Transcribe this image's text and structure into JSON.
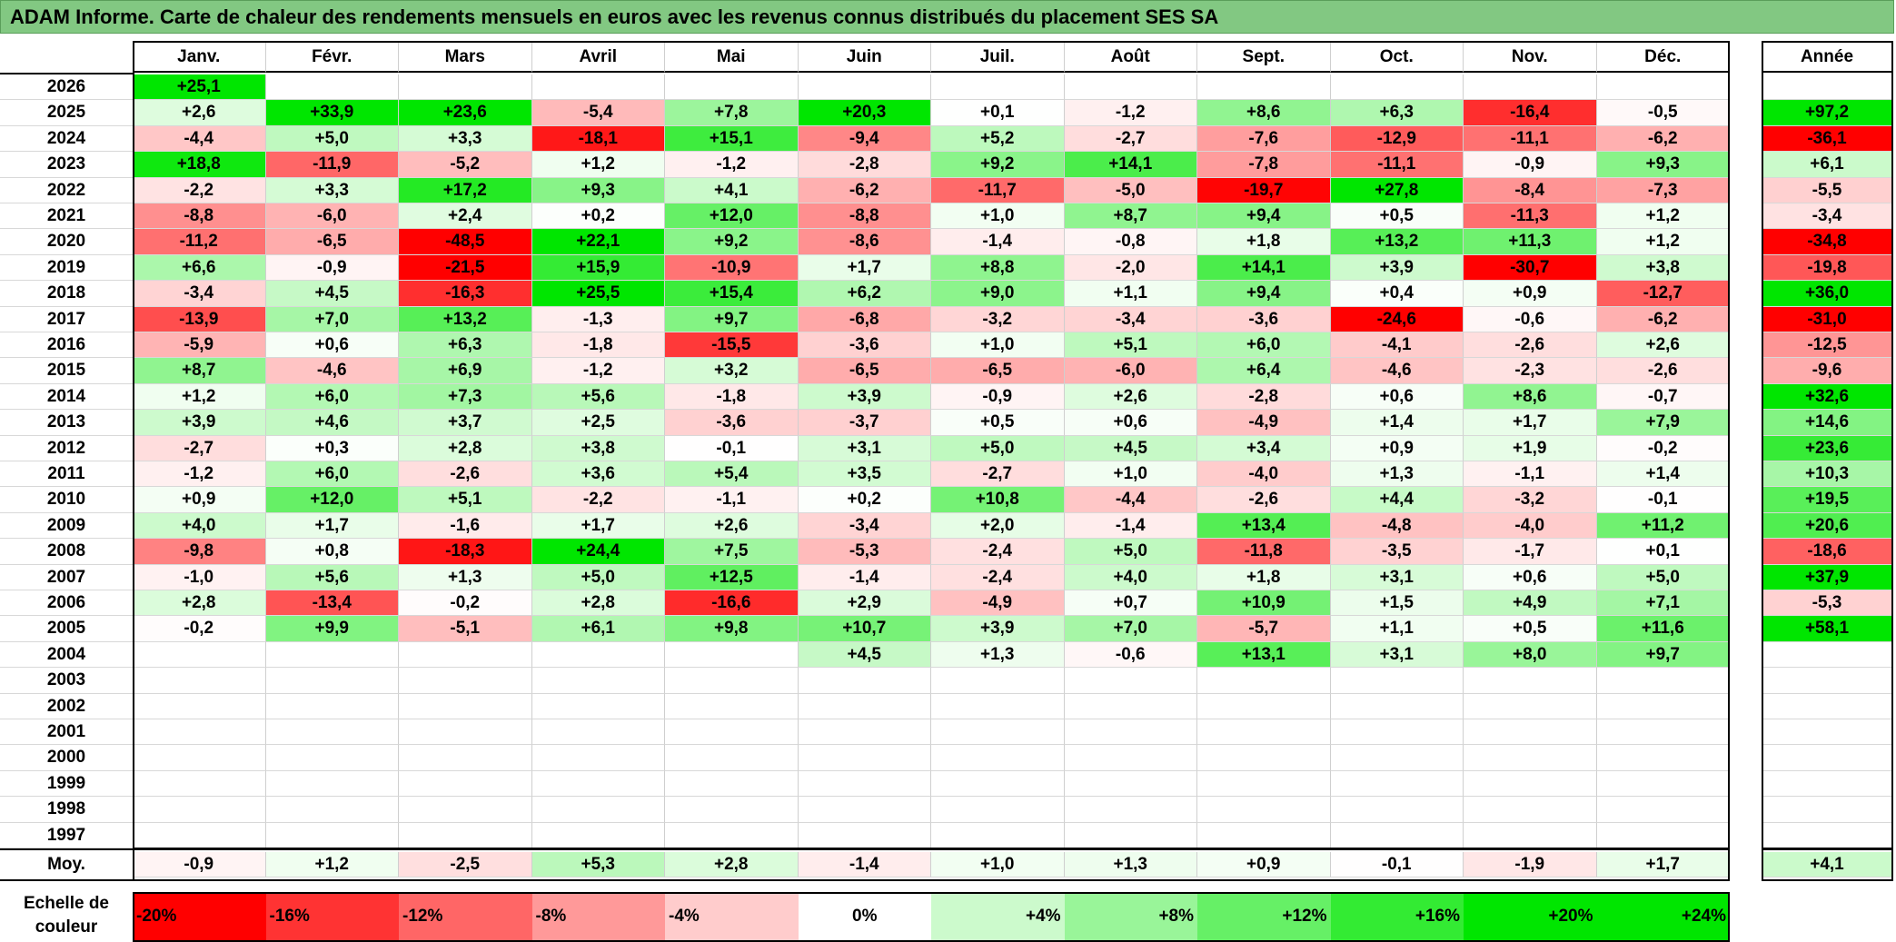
{
  "title": "ADAM Informe. Carte de chaleur des rendements mensuels en euros avec les revenus connus distribués du placement SES SA",
  "chart_data": {
    "type": "heatmap",
    "months": [
      "Janv.",
      "Févr.",
      "Mars",
      "Avril",
      "Mai",
      "Juin",
      "Juil.",
      "Août",
      "Sept.",
      "Oct.",
      "Nov.",
      "Déc."
    ],
    "annual_header": "Année",
    "years": [
      "2026",
      "2025",
      "2024",
      "2023",
      "2022",
      "2021",
      "2020",
      "2019",
      "2018",
      "2017",
      "2016",
      "2015",
      "2014",
      "2013",
      "2012",
      "2011",
      "2010",
      "2009",
      "2008",
      "2007",
      "2006",
      "2005",
      "2004",
      "2003",
      "2002",
      "2001",
      "2000",
      "1999",
      "1998",
      "1997"
    ],
    "values": [
      [
        "+25,1",
        "",
        "",
        "",
        "",
        "",
        "",
        "",
        "",
        "",
        "",
        ""
      ],
      [
        "+2,6",
        "+33,9",
        "+23,6",
        "-5,4",
        "+7,8",
        "+20,3",
        "+0,1",
        "-1,2",
        "+8,6",
        "+6,3",
        "-16,4",
        "-0,5"
      ],
      [
        "-4,4",
        "+5,0",
        "+3,3",
        "-18,1",
        "+15,1",
        "-9,4",
        "+5,2",
        "-2,7",
        "-7,6",
        "-12,9",
        "-11,1",
        "-6,2"
      ],
      [
        "+18,8",
        "-11,9",
        "-5,2",
        "+1,2",
        "-1,2",
        "-2,8",
        "+9,2",
        "+14,1",
        "-7,8",
        "-11,1",
        "-0,9",
        "+9,3"
      ],
      [
        "-2,2",
        "+3,3",
        "+17,2",
        "+9,3",
        "+4,1",
        "-6,2",
        "-11,7",
        "-5,0",
        "-19,7",
        "+27,8",
        "-8,4",
        "-7,3"
      ],
      [
        "-8,8",
        "-6,0",
        "+2,4",
        "+0,2",
        "+12,0",
        "-8,8",
        "+1,0",
        "+8,7",
        "+9,4",
        "+0,5",
        "-11,3",
        "+1,2"
      ],
      [
        "-11,2",
        "-6,5",
        "-48,5",
        "+22,1",
        "+9,2",
        "-8,6",
        "-1,4",
        "-0,8",
        "+1,8",
        "+13,2",
        "+11,3",
        "+1,2"
      ],
      [
        "+6,6",
        "-0,9",
        "-21,5",
        "+15,9",
        "-10,9",
        "+1,7",
        "+8,8",
        "-2,0",
        "+14,1",
        "+3,9",
        "-30,7",
        "+3,8"
      ],
      [
        "-3,4",
        "+4,5",
        "-16,3",
        "+25,5",
        "+15,4",
        "+6,2",
        "+9,0",
        "+1,1",
        "+9,4",
        "+0,4",
        "+0,9",
        "-12,7"
      ],
      [
        "-13,9",
        "+7,0",
        "+13,2",
        "-1,3",
        "+9,7",
        "-6,8",
        "-3,2",
        "-3,4",
        "-3,6",
        "-24,6",
        "-0,6",
        "-6,2"
      ],
      [
        "-5,9",
        "+0,6",
        "+6,3",
        "-1,8",
        "-15,5",
        "-3,6",
        "+1,0",
        "+5,1",
        "+6,0",
        "-4,1",
        "-2,6",
        "+2,6"
      ],
      [
        "+8,7",
        "-4,6",
        "+6,9",
        "-1,2",
        "+3,2",
        "-6,5",
        "-6,5",
        "-6,0",
        "+6,4",
        "-4,6",
        "-2,3",
        "-2,6"
      ],
      [
        "+1,2",
        "+6,0",
        "+7,3",
        "+5,6",
        "-1,8",
        "+3,9",
        "-0,9",
        "+2,6",
        "-2,8",
        "+0,6",
        "+8,6",
        "-0,7"
      ],
      [
        "+3,9",
        "+4,6",
        "+3,7",
        "+2,5",
        "-3,6",
        "-3,7",
        "+0,5",
        "+0,6",
        "-4,9",
        "+1,4",
        "+1,7",
        "+7,9"
      ],
      [
        "-2,7",
        "+0,3",
        "+2,8",
        "+3,8",
        "-0,1",
        "+3,1",
        "+5,0",
        "+4,5",
        "+3,4",
        "+0,9",
        "+1,9",
        "-0,2"
      ],
      [
        "-1,2",
        "+6,0",
        "-2,6",
        "+3,6",
        "+5,4",
        "+3,5",
        "-2,7",
        "+1,0",
        "-4,0",
        "+1,3",
        "-1,1",
        "+1,4"
      ],
      [
        "+0,9",
        "+12,0",
        "+5,1",
        "-2,2",
        "-1,1",
        "+0,2",
        "+10,8",
        "-4,4",
        "-2,6",
        "+4,4",
        "-3,2",
        "-0,1"
      ],
      [
        "+4,0",
        "+1,7",
        "-1,6",
        "+1,7",
        "+2,6",
        "-3,4",
        "+2,0",
        "-1,4",
        "+13,4",
        "-4,8",
        "-4,0",
        "+11,2"
      ],
      [
        "-9,8",
        "+0,8",
        "-18,3",
        "+24,4",
        "+7,5",
        "-5,3",
        "-2,4",
        "+5,0",
        "-11,8",
        "-3,5",
        "-1,7",
        "+0,1"
      ],
      [
        "-1,0",
        "+5,6",
        "+1,3",
        "+5,0",
        "+12,5",
        "-1,4",
        "-2,4",
        "+4,0",
        "+1,8",
        "+3,1",
        "+0,6",
        "+5,0"
      ],
      [
        "+2,8",
        "-13,4",
        "-0,2",
        "+2,8",
        "-16,6",
        "+2,9",
        "-4,9",
        "+0,7",
        "+10,9",
        "+1,5",
        "+4,9",
        "+7,1"
      ],
      [
        "-0,2",
        "+9,9",
        "-5,1",
        "+6,1",
        "+9,8",
        "+10,7",
        "+3,9",
        "+7,0",
        "-5,7",
        "+1,1",
        "+0,5",
        "+11,6"
      ],
      [
        "",
        "",
        "",
        "",
        "",
        "+4,5",
        "+1,3",
        "-0,6",
        "+13,1",
        "+3,1",
        "+8,0",
        "+9,7"
      ],
      [
        "",
        "",
        "",
        "",
        "",
        "",
        "",
        "",
        "",
        "",
        "",
        ""
      ],
      [
        "",
        "",
        "",
        "",
        "",
        "",
        "",
        "",
        "",
        "",
        "",
        ""
      ],
      [
        "",
        "",
        "",
        "",
        "",
        "",
        "",
        "",
        "",
        "",
        "",
        ""
      ],
      [
        "",
        "",
        "",
        "",
        "",
        "",
        "",
        "",
        "",
        "",
        "",
        ""
      ],
      [
        "",
        "",
        "",
        "",
        "",
        "",
        "",
        "",
        "",
        "",
        "",
        ""
      ],
      [
        "",
        "",
        "",
        "",
        "",
        "",
        "",
        "",
        "",
        "",
        "",
        ""
      ],
      [
        "",
        "",
        "",
        "",
        "",
        "",
        "",
        "",
        "",
        "",
        "",
        ""
      ]
    ],
    "annual": [
      "",
      "+97,2",
      "-36,1",
      "+6,1",
      "-5,5",
      "-3,4",
      "-34,8",
      "-19,8",
      "+36,0",
      "-31,0",
      "-12,5",
      "-9,6",
      "+32,6",
      "+14,6",
      "+23,6",
      "+10,3",
      "+19,5",
      "+20,6",
      "-18,6",
      "+37,9",
      "-5,3",
      "+58,1",
      "",
      "",
      "",
      "",
      "",
      "",
      "",
      ""
    ],
    "avg_label": "Moy.",
    "averages": [
      "-0,9",
      "+1,2",
      "-2,5",
      "+5,3",
      "+2,8",
      "-1,4",
      "+1,0",
      "+1,3",
      "+0,9",
      "-0,1",
      "-1,9",
      "+1,7"
    ],
    "avg_annual": "+4,1",
    "color_scale": {
      "label_line1": "Echelle de",
      "label_line2": "couleur",
      "stops": [
        "-20%",
        "-16%",
        "-12%",
        "-8%",
        "-4%",
        "0%",
        "+4%",
        "+8%",
        "+12%",
        "+16%",
        "+20%",
        "+24%"
      ],
      "neg_color": "#ff0000",
      "pos_color": "#00e600",
      "neutral_color": "#ffffff"
    }
  }
}
